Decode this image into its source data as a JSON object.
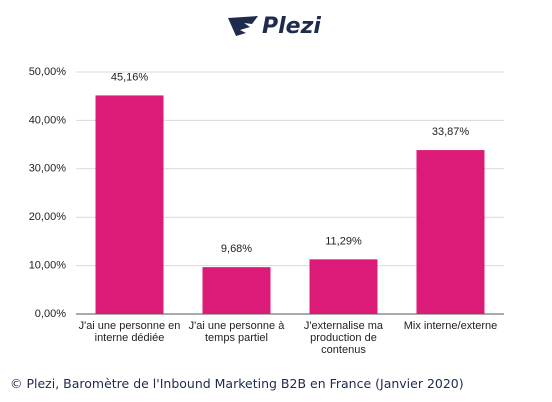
{
  "logo": "Plezi",
  "caption": "© Plezi, Baromètre de l'Inbound Marketing B2B en France (Janvier 2020)",
  "chart_data": {
    "type": "bar",
    "categories": [
      "J'ai une personne en interne dédiée",
      "J'ai une personne à temps partiel",
      "J'externalise ma production de contenus",
      "Mix interne/externe"
    ],
    "values": [
      45.16,
      9.68,
      11.29,
      33.87
    ],
    "value_labels": [
      "45,16%",
      "9,68%",
      "11,29%",
      "33,87%"
    ],
    "color": "#dc1a78",
    "ylim": [
      0,
      50
    ],
    "yticks": [
      {
        "value": 0,
        "label": "0,00%"
      },
      {
        "value": 10,
        "label": "10,00%"
      },
      {
        "value": 20,
        "label": "20,00%"
      },
      {
        "value": 30,
        "label": "30,00%"
      },
      {
        "value": 40,
        "label": "40,00%"
      },
      {
        "value": 50,
        "label": "50,00%"
      }
    ],
    "grid": true
  }
}
